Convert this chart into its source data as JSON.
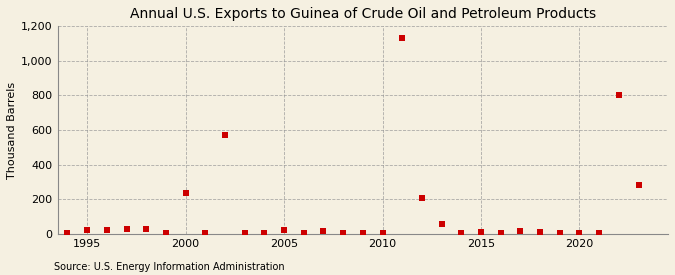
{
  "title": "Annual U.S. Exports to Guinea of Crude Oil and Petroleum Products",
  "ylabel": "Thousand Barrels",
  "source": "Source: U.S. Energy Information Administration",
  "background_color": "#f5f0e1",
  "years": [
    1994,
    1995,
    1996,
    1997,
    1998,
    1999,
    2000,
    2001,
    2002,
    2003,
    2004,
    2005,
    2006,
    2007,
    2008,
    2009,
    2010,
    2011,
    2012,
    2013,
    2014,
    2015,
    2016,
    2017,
    2018,
    2019,
    2020,
    2021,
    2022,
    2023
  ],
  "values": [
    5,
    20,
    25,
    30,
    30,
    5,
    235,
    5,
    570,
    5,
    5,
    20,
    5,
    15,
    5,
    5,
    5,
    1130,
    205,
    55,
    5,
    10,
    5,
    15,
    10,
    5,
    5,
    5,
    800,
    285
  ],
  "marker_color": "#cc0000",
  "marker_size": 18,
  "ylim": [
    0,
    1200
  ],
  "yticks": [
    0,
    200,
    400,
    600,
    800,
    1000,
    1200
  ],
  "ytick_labels": [
    "0",
    "200",
    "400",
    "600",
    "800",
    "1,000",
    "1,200"
  ],
  "xlim": [
    1993.5,
    2024.5
  ],
  "xticks": [
    1995,
    2000,
    2005,
    2010,
    2015,
    2020
  ],
  "title_fontsize": 10,
  "axis_fontsize": 8,
  "source_fontsize": 7
}
